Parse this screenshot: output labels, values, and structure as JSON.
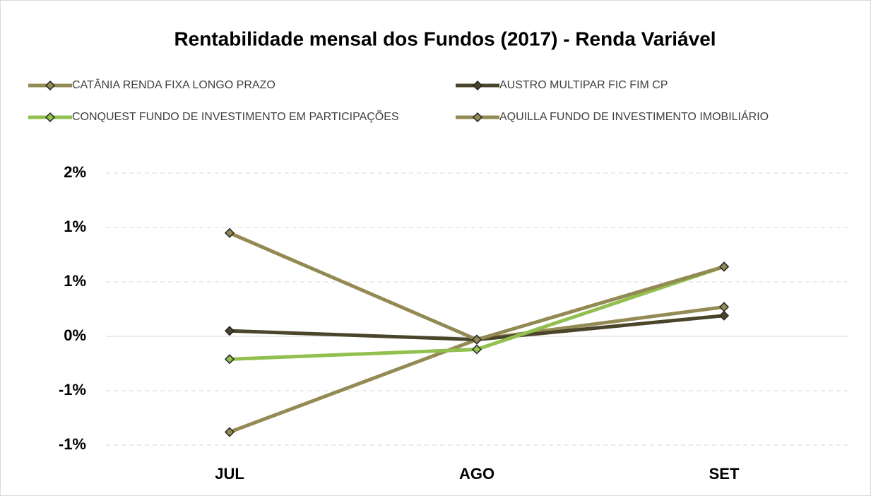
{
  "chart_data": {
    "type": "line",
    "title": "Rentabilidade mensal dos Fundos (2017)   -   Renda Variável",
    "categories": [
      "JUL",
      "AGO",
      "SET"
    ],
    "series": [
      {
        "name": "CATÂNIA RENDA FIXA LONGO PRAZO",
        "color": "#948a54",
        "values": [
          -0.88,
          -0.03,
          0.27
        ]
      },
      {
        "name": "AUSTRO MULTIPAR FIC FIM CP",
        "color": "#4a452a",
        "values": [
          0.05,
          -0.03,
          0.19
        ]
      },
      {
        "name": "CONQUEST FUNDO DE INVESTIMENTO EM PARTICIPAÇÕES",
        "color": "#92c050",
        "values": [
          -0.21,
          -0.12,
          0.64
        ]
      },
      {
        "name": "AQUILLA FUNDO DE INVESTIMENTO IMOBILIÁRIO",
        "color": "#938953",
        "values": [
          0.95,
          -0.03,
          0.64
        ]
      }
    ],
    "ylim": [
      -1,
      1.5
    ],
    "yticks": [
      {
        "value": -1,
        "label": "-1%"
      },
      {
        "value": -0.5,
        "label": "-1%"
      },
      {
        "value": 0,
        "label": "0%"
      },
      {
        "value": 0.5,
        "label": "1%"
      },
      {
        "value": 1,
        "label": "1%"
      },
      {
        "value": 1.5,
        "label": "2%"
      }
    ],
    "grid": true
  }
}
